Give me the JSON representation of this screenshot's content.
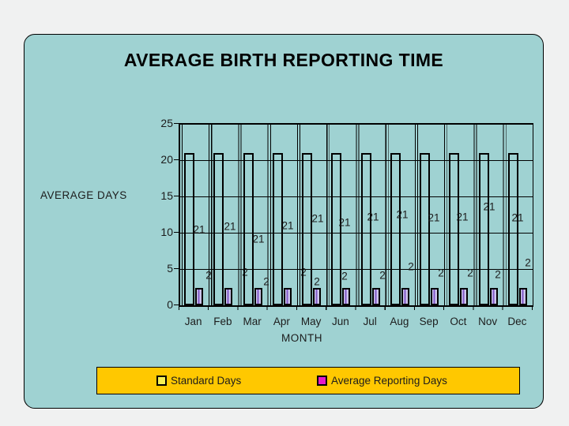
{
  "title": "AVERAGE BIRTH REPORTING TIME",
  "chart_data": {
    "type": "bar",
    "title": "AVERAGE BIRTH REPORTING TIME",
    "categories": [
      "Jan",
      "Feb",
      "Mar",
      "Apr",
      "May",
      "Jun",
      "Jul",
      "Aug",
      "Sep",
      "Oct",
      "Nov",
      "Dec"
    ],
    "series": [
      {
        "name": "Standard Days",
        "values": [
          21,
          21,
          21,
          21,
          21,
          21,
          21,
          21,
          21,
          21,
          21,
          21
        ]
      },
      {
        "name": "Average Reporting Days",
        "values": [
          2,
          2,
          2,
          2,
          2,
          2,
          2,
          2,
          2,
          2,
          2,
          2
        ]
      }
    ],
    "xlabel": "MONTH",
    "ylabel": "AVERAGE DAYS",
    "ylim": [
      0,
      25
    ],
    "yticks": [
      25,
      20,
      15,
      10,
      5,
      0
    ],
    "grid": true,
    "legend_position": "bottom",
    "label_positions": {
      "standard": [
        [
          25,
          134
        ],
        [
          64,
          130
        ],
        [
          100,
          146
        ],
        [
          137,
          129
        ],
        [
          175,
          120
        ],
        [
          209,
          125
        ],
        [
          245,
          118
        ],
        [
          282,
          115
        ],
        [
          322,
          119
        ],
        [
          358,
          118
        ],
        [
          392,
          105
        ],
        [
          428,
          119
        ]
      ],
      "reporting": [
        [
          37,
          192
        ],
        [
          83,
          188
        ],
        [
          110,
          200
        ],
        [
          157,
          188
        ],
        [
          174,
          200
        ],
        [
          209,
          193
        ],
        [
          257,
          192
        ],
        [
          293,
          181
        ],
        [
          331,
          189
        ],
        [
          368,
          189
        ],
        [
          403,
          191
        ],
        [
          441,
          176
        ]
      ]
    }
  },
  "legend": {
    "items": [
      {
        "label": "Standard Days",
        "swatch": "#F6EF53"
      },
      {
        "label": "Average Reporting Days",
        "swatch": "#E51AC9"
      }
    ]
  },
  "colors": {
    "page_bg": "#F0F1F1",
    "slide_bg": "#9FD2D2",
    "outline": "#000000",
    "bar_standard_fill": "transparent",
    "bar_reporting_fill": "#CDC5EC",
    "bar_reporting_stripe": "#8159C7",
    "legend_bg": "#FFC800",
    "text": "#1c1c1c"
  }
}
